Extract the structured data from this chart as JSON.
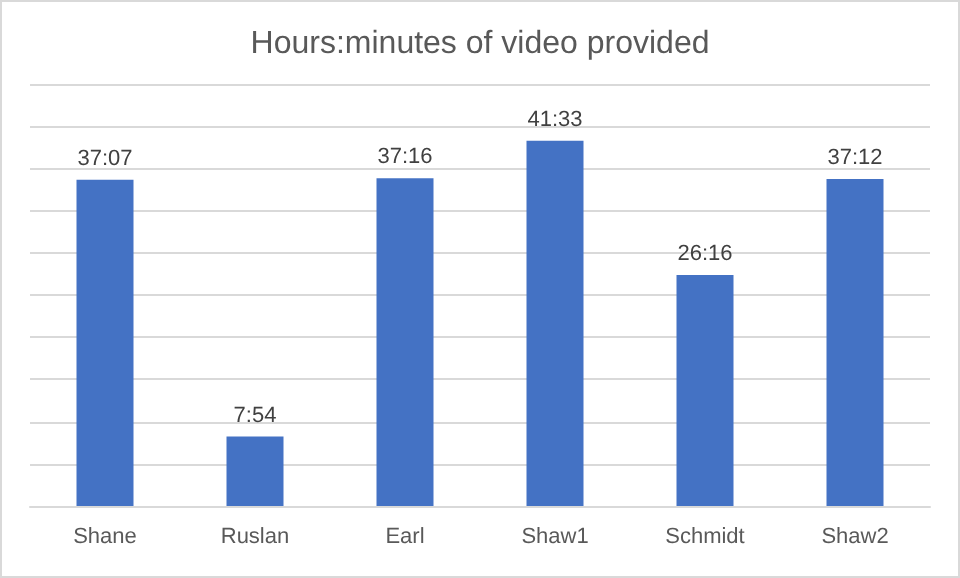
{
  "chart_data": {
    "type": "bar",
    "title": "Hours:minutes of video provided",
    "categories": [
      "Shane",
      "Ruslan",
      "Earl",
      "Shaw1",
      "Schmidt",
      "Shaw2"
    ],
    "values": [
      2227,
      474,
      2236,
      2493,
      1576,
      2232
    ],
    "value_labels": [
      "37:07",
      "7:54",
      "37:16",
      "41:33",
      "26:16",
      "37:12"
    ],
    "color": "#4472c4",
    "ylim": [
      0,
      2880
    ],
    "yticks": [
      {
        "value": 0,
        "label": null
      },
      {
        "value": 288,
        "label": null
      },
      {
        "value": 576,
        "label": null
      },
      {
        "value": 864,
        "label": null
      },
      {
        "value": 1152,
        "label": null
      },
      {
        "value": 1440,
        "label": null
      },
      {
        "value": 1728,
        "label": null
      },
      {
        "value": 2016,
        "label": null
      },
      {
        "value": 2304,
        "label": null
      },
      {
        "value": 2592,
        "label": null
      },
      {
        "value": 2880,
        "label": null
      }
    ],
    "tick_labels": "x",
    "grid": "y"
  }
}
